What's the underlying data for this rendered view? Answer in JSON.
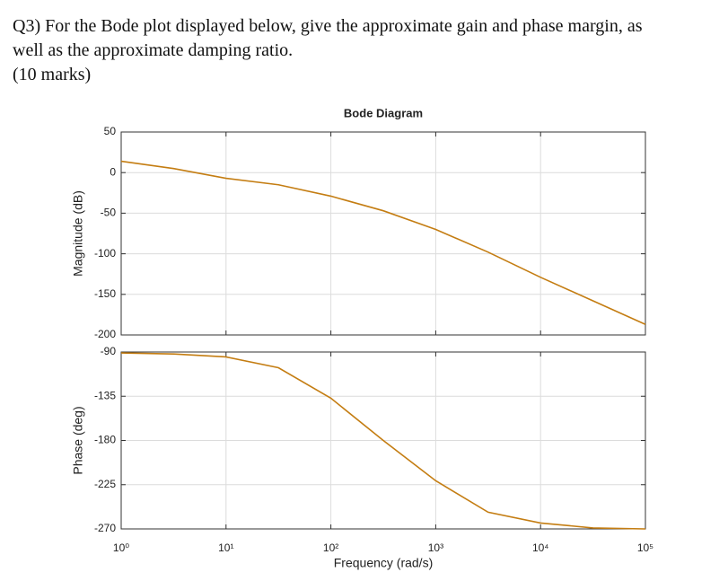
{
  "question": {
    "lines": [
      "Q3) For the Bode plot displayed below, give the approximate gain and phase margin, as",
      "well as the approximate damping ratio.",
      "(10 marks)"
    ]
  },
  "chart_data": [
    {
      "type": "line",
      "title": "Bode Diagram",
      "ylabel": "Magnitude (dB)",
      "xscale": "log",
      "grid": true,
      "x": [
        1,
        3.162,
        10,
        31.62,
        100,
        316.2,
        1000,
        3162,
        10000,
        31620,
        100000
      ],
      "series": [
        {
          "color": "#c47d12",
          "values": [
            14,
            5,
            -7,
            -15,
            -29,
            -47,
            -70,
            -98,
            -129,
            -158,
            -187
          ]
        }
      ],
      "xlim": [
        1,
        100000
      ],
      "ylim": [
        -200,
        50
      ],
      "yticks": [
        50,
        0,
        -50,
        -100,
        -150,
        -200
      ]
    },
    {
      "type": "line",
      "xlabel": "Frequency  (rad/s)",
      "ylabel": "Phase (deg)",
      "xscale": "log",
      "grid": true,
      "x": [
        1,
        3.162,
        10,
        31.62,
        100,
        316.2,
        1000,
        3162,
        10000,
        31620,
        100000
      ],
      "series": [
        {
          "color": "#c47d12",
          "values": [
            -91,
            -92,
            -95,
            -106,
            -137,
            -180,
            -221,
            -253,
            -264,
            -269,
            -270
          ]
        }
      ],
      "xlim": [
        1,
        100000
      ],
      "ylim": [
        -270,
        -90
      ],
      "yticks": [
        -90,
        -135,
        -180,
        -225,
        -270
      ],
      "xticks": [
        {
          "value": 1,
          "label": "10⁰"
        },
        {
          "value": 10,
          "label": "10¹"
        },
        {
          "value": 100,
          "label": "10²"
        },
        {
          "value": 1000,
          "label": "10³"
        },
        {
          "value": 10000,
          "label": "10⁴"
        },
        {
          "value": 100000,
          "label": "10⁵"
        }
      ]
    }
  ]
}
